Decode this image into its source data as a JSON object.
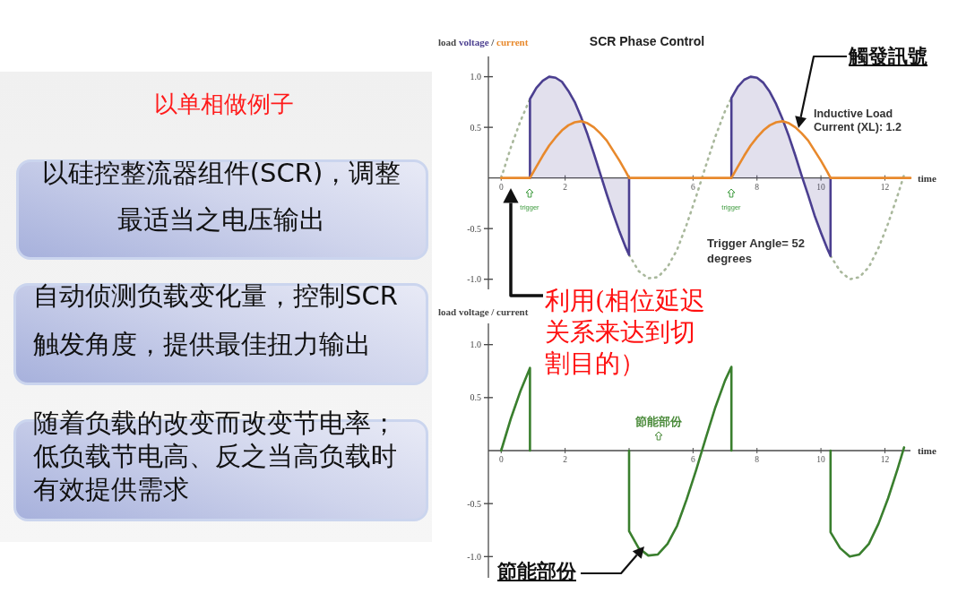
{
  "chart_data": [
    {
      "type": "other",
      "title": "以单相做例子",
      "annotations": [
        "以硅控整流器组件(SCR)，调整最适当之电压输出",
        "自动侦测负载变化量，控制SCR触发角度，提供最佳扭力输出",
        "随着负载的改变而改变节电率；低负载节电高、反之当高负载时有效提供需求"
      ]
    },
    {
      "type": "line",
      "title": "SCR Phase Control",
      "xlabel": "time",
      "ylabel": "load voltage / current",
      "xlim": [
        -0.4,
        12.8
      ],
      "ylim": [
        -1.1,
        1.2
      ],
      "xticks": [
        0,
        2,
        {
          "value": 4,
          "label": null
        },
        6,
        8,
        10,
        12
      ],
      "yticks": [
        {
          "value": -1,
          "label": "-1.0"
        },
        {
          "value": -0.5,
          "label": "-0.5"
        },
        {
          "value": 0.5,
          "label": "0.5"
        },
        {
          "value": 1,
          "label": "1.0"
        }
      ],
      "series": [
        {
          "type": "line",
          "line_style": "dotted",
          "color": "#a9b89c",
          "x": [
            0,
            0.3,
            0.6,
            0.9
          ],
          "values": [
            0,
            0.3,
            0.56,
            0.78
          ]
        },
        {
          "type": "line",
          "line_style": "dotted",
          "color": "#a9b89c",
          "x": [
            4.0,
            4.3,
            4.6,
            4.9,
            5.2,
            5.5,
            5.8,
            6.1,
            6.4,
            6.7,
            7.0,
            7.2
          ],
          "values": [
            -0.76,
            -0.92,
            -0.99,
            -0.98,
            -0.88,
            -0.71,
            -0.46,
            -0.18,
            0.12,
            0.41,
            0.66,
            0.79
          ]
        },
        {
          "type": "line",
          "line_style": "dotted",
          "color": "#a9b89c",
          "x": [
            10.3,
            10.6,
            10.9,
            11.2,
            11.5,
            11.8,
            12.1,
            12.4,
            12.6
          ],
          "values": [
            -0.77,
            -0.92,
            -1.0,
            -0.98,
            -0.88,
            -0.69,
            -0.45,
            -0.17,
            0.03
          ]
        },
        {
          "type": "area",
          "color": "#4b3f90",
          "x": [
            0.9,
            0.9,
            1.1,
            1.3,
            1.5,
            1.7,
            1.9,
            2.1,
            2.3,
            2.5,
            2.7,
            2.9,
            3.1,
            3.3,
            3.5,
            3.7,
            3.9,
            4.0,
            4.0
          ],
          "values": [
            0,
            0.78,
            0.89,
            0.96,
            1.0,
            0.99,
            0.95,
            0.86,
            0.75,
            0.6,
            0.43,
            0.24,
            0.04,
            -0.16,
            -0.35,
            -0.53,
            -0.69,
            -0.76,
            0
          ]
        },
        {
          "type": "area",
          "color": "#4b3f90",
          "x": [
            7.2,
            7.2,
            7.4,
            7.6,
            7.8,
            8.0,
            8.2,
            8.4,
            8.6,
            8.8,
            9.0,
            9.2,
            9.4,
            9.6,
            9.8,
            10.0,
            10.2,
            10.3,
            10.3
          ],
          "values": [
            0,
            0.79,
            0.9,
            0.97,
            1.0,
            0.99,
            0.94,
            0.85,
            0.73,
            0.58,
            0.41,
            0.22,
            0.02,
            -0.17,
            -0.37,
            -0.54,
            -0.7,
            -0.77,
            0
          ]
        },
        {
          "type": "line",
          "color": "#e8892c",
          "x": [
            0,
            0.9,
            1.1,
            1.3,
            1.5,
            1.7,
            1.9,
            2.1,
            2.3,
            2.5,
            2.7,
            2.9,
            3.1,
            3.3,
            3.5,
            3.7,
            3.9,
            4.0,
            7.2,
            7.4,
            7.6,
            7.8,
            8.0,
            8.2,
            8.4,
            8.6,
            8.8,
            9.0,
            9.2,
            9.4,
            9.6,
            9.8,
            10.0,
            10.2,
            10.3,
            12.8
          ],
          "values": [
            0,
            0,
            0.11,
            0.22,
            0.32,
            0.4,
            0.47,
            0.52,
            0.55,
            0.56,
            0.54,
            0.5,
            0.44,
            0.37,
            0.27,
            0.17,
            0.06,
            0,
            0,
            0.11,
            0.22,
            0.32,
            0.4,
            0.47,
            0.52,
            0.55,
            0.56,
            0.54,
            0.5,
            0.44,
            0.37,
            0.27,
            0.17,
            0.06,
            0,
            0
          ]
        }
      ],
      "annotations": [
        "trigger",
        "trigger",
        "Inductive Load Current (XL): 1.2",
        "Trigger Angle= 52 degrees",
        "觸發訊號",
        "利用(相位延迟关系来达到切割目的）"
      ]
    },
    {
      "type": "line",
      "xlabel": "time",
      "ylabel": "load voltage / current",
      "xlim": [
        -0.4,
        12.8
      ],
      "ylim": [
        -1.2,
        1.2
      ],
      "xticks": [
        0,
        2,
        {
          "value": 4,
          "label": null
        },
        6,
        8,
        10,
        12
      ],
      "yticks": [
        {
          "value": -1,
          "label": "-1.0"
        },
        {
          "value": -0.5,
          "label": "-0.5"
        },
        {
          "value": 0.5,
          "label": "0.5"
        },
        {
          "value": 1,
          "label": "1.0"
        }
      ],
      "series": [
        {
          "type": "line",
          "color": "#3a7f2e",
          "x": [
            0,
            0.3,
            0.6,
            0.9,
            0.9
          ],
          "values": [
            0,
            0.3,
            0.56,
            0.78,
            0
          ]
        },
        {
          "type": "line",
          "color": "#3a7f2e",
          "x": [
            4.0,
            4.0,
            4.3,
            4.6,
            4.9,
            5.2,
            5.5,
            5.8,
            6.1,
            6.4,
            6.7,
            7.0,
            7.2,
            7.2
          ],
          "values": [
            0,
            -0.76,
            -0.92,
            -0.99,
            -0.98,
            -0.88,
            -0.71,
            -0.46,
            -0.18,
            0.12,
            0.41,
            0.66,
            0.79,
            0
          ]
        },
        {
          "type": "line",
          "color": "#3a7f2e",
          "x": [
            10.3,
            10.3,
            10.6,
            10.9,
            11.2,
            11.5,
            11.8,
            12.1,
            12.4,
            12.6
          ],
          "values": [
            0,
            -0.77,
            -0.92,
            -1.0,
            -0.98,
            -0.88,
            -0.69,
            -0.45,
            -0.17,
            0.03
          ]
        }
      ],
      "annotations": [
        "節能部份",
        "節能部份"
      ]
    }
  ]
}
